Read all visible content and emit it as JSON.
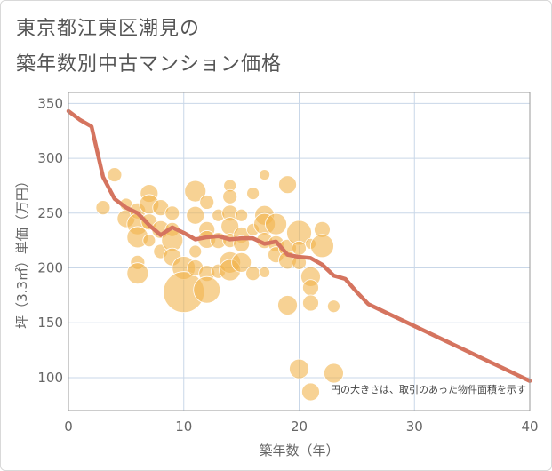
{
  "title_line1": "東京都江東区潮見の",
  "title_line2": "築年数別中古マンション価格",
  "colors": {
    "bubble": "#f2b44d",
    "line": "#d5745f",
    "grid": "#c9d7e8",
    "plot_border": "#999999"
  },
  "chart_data": {
    "type": "scatter",
    "xlabel": "築年数（年）",
    "ylabel": "坪（3.3㎡）単価（万円）",
    "xlim": [
      0,
      40
    ],
    "ylim": [
      70,
      360
    ],
    "xticks": [
      0,
      10,
      20,
      30,
      40
    ],
    "yticks": [
      100,
      150,
      200,
      250,
      300,
      350
    ],
    "grid": true,
    "note": "円の大きさは、取引のあった物件面積を示す",
    "trend_line": {
      "x": [
        0,
        1,
        2,
        3,
        4,
        5,
        6,
        7,
        8,
        9,
        10,
        11,
        12,
        13,
        14,
        15,
        16,
        17,
        18,
        19,
        20,
        21,
        22,
        23,
        24,
        25,
        26,
        27,
        28,
        29,
        30,
        31,
        32,
        33,
        34,
        35,
        36,
        37,
        38,
        39,
        40
      ],
      "y": [
        343,
        335,
        329,
        283,
        263,
        255,
        250,
        239,
        230,
        237,
        232,
        226,
        228,
        229,
        226,
        227,
        227,
        222,
        224,
        212,
        210,
        209,
        203,
        193,
        190,
        178,
        167,
        162,
        157,
        152,
        147,
        142,
        137,
        132,
        127,
        122,
        117,
        112,
        107,
        102,
        97
      ]
    },
    "bubbles": [
      {
        "x": 3,
        "y": 255,
        "r": 8
      },
      {
        "x": 4,
        "y": 285,
        "r": 8
      },
      {
        "x": 5,
        "y": 258,
        "r": 7
      },
      {
        "x": 5,
        "y": 245,
        "r": 10
      },
      {
        "x": 6,
        "y": 252,
        "r": 9
      },
      {
        "x": 6,
        "y": 240,
        "r": 12
      },
      {
        "x": 6,
        "y": 228,
        "r": 12
      },
      {
        "x": 6,
        "y": 205,
        "r": 8
      },
      {
        "x": 6,
        "y": 195,
        "r": 12
      },
      {
        "x": 7,
        "y": 268,
        "r": 10
      },
      {
        "x": 7,
        "y": 258,
        "r": 11
      },
      {
        "x": 7,
        "y": 242,
        "r": 9
      },
      {
        "x": 7,
        "y": 225,
        "r": 7
      },
      {
        "x": 8,
        "y": 255,
        "r": 9
      },
      {
        "x": 8,
        "y": 235,
        "r": 10
      },
      {
        "x": 8,
        "y": 215,
        "r": 8
      },
      {
        "x": 9,
        "y": 250,
        "r": 8
      },
      {
        "x": 9,
        "y": 235,
        "r": 8
      },
      {
        "x": 9,
        "y": 225,
        "r": 12
      },
      {
        "x": 9,
        "y": 210,
        "r": 10
      },
      {
        "x": 10,
        "y": 200,
        "r": 13
      },
      {
        "x": 10,
        "y": 178,
        "r": 23
      },
      {
        "x": 11,
        "y": 270,
        "r": 12
      },
      {
        "x": 11,
        "y": 248,
        "r": 10
      },
      {
        "x": 11,
        "y": 215,
        "r": 7
      },
      {
        "x": 11,
        "y": 200,
        "r": 9
      },
      {
        "x": 12,
        "y": 260,
        "r": 8
      },
      {
        "x": 12,
        "y": 235,
        "r": 9
      },
      {
        "x": 12,
        "y": 226,
        "r": 10
      },
      {
        "x": 12,
        "y": 195,
        "r": 9
      },
      {
        "x": 12,
        "y": 180,
        "r": 15
      },
      {
        "x": 13,
        "y": 248,
        "r": 7
      },
      {
        "x": 13,
        "y": 225,
        "r": 9
      },
      {
        "x": 13,
        "y": 197,
        "r": 8
      },
      {
        "x": 14,
        "y": 275,
        "r": 7
      },
      {
        "x": 14,
        "y": 265,
        "r": 8
      },
      {
        "x": 14,
        "y": 250,
        "r": 9
      },
      {
        "x": 14,
        "y": 238,
        "r": 10
      },
      {
        "x": 14,
        "y": 225,
        "r": 8
      },
      {
        "x": 14,
        "y": 205,
        "r": 12
      },
      {
        "x": 14,
        "y": 198,
        "r": 12
      },
      {
        "x": 15,
        "y": 248,
        "r": 7
      },
      {
        "x": 15,
        "y": 230,
        "r": 9
      },
      {
        "x": 15,
        "y": 222,
        "r": 9
      },
      {
        "x": 15,
        "y": 205,
        "r": 11
      },
      {
        "x": 16,
        "y": 268,
        "r": 7
      },
      {
        "x": 16,
        "y": 235,
        "r": 7
      },
      {
        "x": 16,
        "y": 195,
        "r": 8
      },
      {
        "x": 17,
        "y": 285,
        "r": 6
      },
      {
        "x": 17,
        "y": 248,
        "r": 11
      },
      {
        "x": 17,
        "y": 240,
        "r": 12
      },
      {
        "x": 17,
        "y": 225,
        "r": 9
      },
      {
        "x": 17,
        "y": 196,
        "r": 6
      },
      {
        "x": 18,
        "y": 240,
        "r": 12
      },
      {
        "x": 18,
        "y": 222,
        "r": 9
      },
      {
        "x": 18,
        "y": 212,
        "r": 9
      },
      {
        "x": 19,
        "y": 276,
        "r": 10
      },
      {
        "x": 19,
        "y": 218,
        "r": 10
      },
      {
        "x": 19,
        "y": 207,
        "r": 10
      },
      {
        "x": 19,
        "y": 166,
        "r": 11
      },
      {
        "x": 20,
        "y": 232,
        "r": 14
      },
      {
        "x": 20,
        "y": 218,
        "r": 8
      },
      {
        "x": 20,
        "y": 205,
        "r": 8
      },
      {
        "x": 20,
        "y": 108,
        "r": 11
      },
      {
        "x": 21,
        "y": 222,
        "r": 6
      },
      {
        "x": 21,
        "y": 192,
        "r": 11
      },
      {
        "x": 21,
        "y": 182,
        "r": 9
      },
      {
        "x": 21,
        "y": 168,
        "r": 9
      },
      {
        "x": 21,
        "y": 87,
        "r": 10
      },
      {
        "x": 22,
        "y": 235,
        "r": 9
      },
      {
        "x": 22,
        "y": 220,
        "r": 13
      },
      {
        "x": 23,
        "y": 165,
        "r": 7
      },
      {
        "x": 23,
        "y": 104,
        "r": 11
      }
    ]
  }
}
